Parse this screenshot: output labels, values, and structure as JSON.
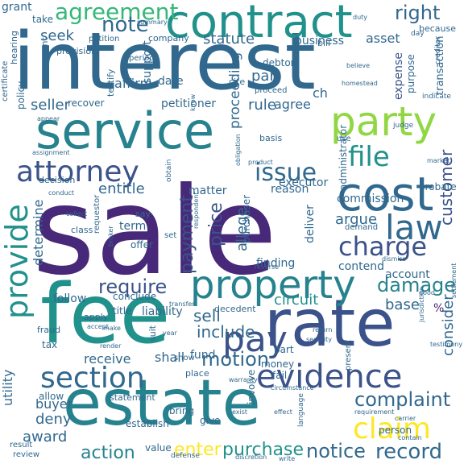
{
  "palette": {
    "dark-purple": "#440154",
    "indigo": "#3b528b",
    "blue": "#31688e",
    "teal": "#21918c",
    "sea": "#26828e",
    "green": "#35b779",
    "lime": "#90d743",
    "yellow": "#fde725",
    "navy": "#482878"
  },
  "words": [
    {
      "text": "sale"
    },
    {
      "text": "interest"
    },
    {
      "text": "fee"
    },
    {
      "text": "service"
    },
    {
      "text": "rate"
    },
    {
      "text": "estate"
    },
    {
      "text": "contract"
    },
    {
      "text": "cost"
    },
    {
      "text": "party"
    },
    {
      "text": "property"
    },
    {
      "text": "evidence"
    },
    {
      "text": "section"
    },
    {
      "text": "attorney"
    },
    {
      "text": "provide"
    },
    {
      "text": "law"
    },
    {
      "text": "charge"
    },
    {
      "text": "pay"
    },
    {
      "text": "file"
    },
    {
      "text": "claim"
    },
    {
      "text": "agreement"
    },
    {
      "text": "issue"
    },
    {
      "text": "note"
    },
    {
      "text": "right"
    },
    {
      "text": "damage"
    },
    {
      "text": "require"
    },
    {
      "text": "complaint"
    },
    {
      "text": "record"
    },
    {
      "text": "notice"
    },
    {
      "text": "purchase"
    },
    {
      "text": "action"
    },
    {
      "text": "enter"
    },
    {
      "text": "motion"
    },
    {
      "text": "payment"
    },
    {
      "text": "price"
    },
    {
      "text": "customer"
    },
    {
      "text": "seek"
    },
    {
      "text": "seller"
    },
    {
      "text": "statute"
    },
    {
      "text": "sell"
    },
    {
      "text": "include"
    },
    {
      "text": "circuit"
    },
    {
      "text": "base"
    },
    {
      "text": "consider"
    },
    {
      "text": "deny"
    },
    {
      "text": "award"
    },
    {
      "text": "buyer"
    },
    {
      "text": "entitle"
    },
    {
      "text": "argue"
    },
    {
      "text": "allege"
    },
    {
      "text": "proceeding"
    },
    {
      "text": "determine"
    },
    {
      "text": "executor"
    },
    {
      "text": "commission"
    },
    {
      "text": "expense"
    },
    {
      "text": "receive"
    },
    {
      "text": "shall"
    },
    {
      "text": "fund"
    },
    {
      "text": "utility"
    },
    {
      "text": "finding"
    },
    {
      "text": "contend"
    },
    {
      "text": "deliver"
    },
    {
      "text": "rule"
    },
    {
      "text": "agree"
    },
    {
      "text": "par"
    },
    {
      "text": "asset"
    },
    {
      "text": "business"
    },
    {
      "text": "company"
    },
    {
      "text": "affirm"
    },
    {
      "text": "date"
    },
    {
      "text": "support"
    },
    {
      "text": "petitioner"
    },
    {
      "text": "recover"
    },
    {
      "text": "policy"
    },
    {
      "text": "follow"
    },
    {
      "text": "conclude"
    },
    {
      "text": "liability"
    },
    {
      "text": "title"
    },
    {
      "text": "term"
    },
    {
      "text": "matter"
    },
    {
      "text": "reason"
    },
    {
      "text": "account"
    },
    {
      "text": "involve"
    },
    {
      "text": "money"
    },
    {
      "text": "fail"
    },
    {
      "text": "part"
    },
    {
      "text": "allow"
    },
    {
      "text": "tax"
    },
    {
      "text": "establish"
    },
    {
      "text": "give"
    },
    {
      "text": "bring"
    },
    {
      "text": "value"
    },
    {
      "text": "person"
    },
    {
      "text": "probate"
    },
    {
      "text": "administrator"
    },
    {
      "text": "purchaser"
    },
    {
      "text": "decision"
    },
    {
      "text": "grant"
    },
    {
      "text": "offer"
    },
    {
      "text": "transaction"
    },
    {
      "text": "purpose"
    },
    {
      "text": "provision"
    },
    {
      "text": "because"
    },
    {
      "text": "bill"
    },
    {
      "text": "debtor"
    },
    {
      "text": "period"
    },
    {
      "text": "argument"
    },
    {
      "text": "testify"
    },
    {
      "text": "hearing"
    },
    {
      "text": "certificate"
    },
    {
      "text": "take"
    },
    {
      "text": "petition"
    },
    {
      "text": "apply"
    },
    {
      "text": "fraud"
    },
    {
      "text": "suit"
    },
    {
      "text": "place"
    },
    {
      "text": "show"
    },
    {
      "text": "demand"
    },
    {
      "text": "decedent"
    },
    {
      "text": "language"
    },
    {
      "text": "present"
    },
    {
      "text": "statement"
    },
    {
      "text": "result"
    },
    {
      "text": "review"
    },
    {
      "text": "defense"
    },
    {
      "text": "class"
    },
    {
      "text": "say"
    },
    {
      "text": "requestor"
    },
    {
      "text": "basis"
    },
    {
      "text": "cite"
    },
    {
      "text": "proceed"
    },
    {
      "text": "day"
    },
    {
      "text": "obtain"
    },
    {
      "text": "set"
    },
    {
      "text": "use"
    },
    {
      "text": "judge"
    },
    {
      "text": "%"
    },
    {
      "text": "ch"
    },
    {
      "text": "duty"
    },
    {
      "text": "summary"
    },
    {
      "text": "creditor"
    },
    {
      "text": "indicate"
    },
    {
      "text": "homestead"
    },
    {
      "text": "believe"
    },
    {
      "text": "market"
    },
    {
      "text": "circumstance"
    },
    {
      "text": "discretion"
    },
    {
      "text": "write"
    },
    {
      "text": "effect"
    },
    {
      "text": "requirement"
    },
    {
      "text": "know"
    },
    {
      "text": "conduct"
    },
    {
      "text": "collect"
    },
    {
      "text": "make"
    },
    {
      "text": "render"
    },
    {
      "text": "accept"
    },
    {
      "text": "appear"
    },
    {
      "text": "year"
    },
    {
      "text": "return"
    },
    {
      "text": "security"
    },
    {
      "text": "testimony"
    },
    {
      "text": "dismiss"
    },
    {
      "text": "good"
    },
    {
      "text": "reverse"
    },
    {
      "text": "jurisdiction"
    },
    {
      "text": "settlement"
    },
    {
      "text": "product"
    },
    {
      "text": "obligation"
    },
    {
      "text": "assignment"
    },
    {
      "text": "respondent"
    },
    {
      "text": "broker"
    },
    {
      "text": "transfer"
    },
    {
      "text": "warranty"
    },
    {
      "text": "exist"
    },
    {
      "text": "carrier"
    },
    {
      "text": "contain"
    }
  ]
}
